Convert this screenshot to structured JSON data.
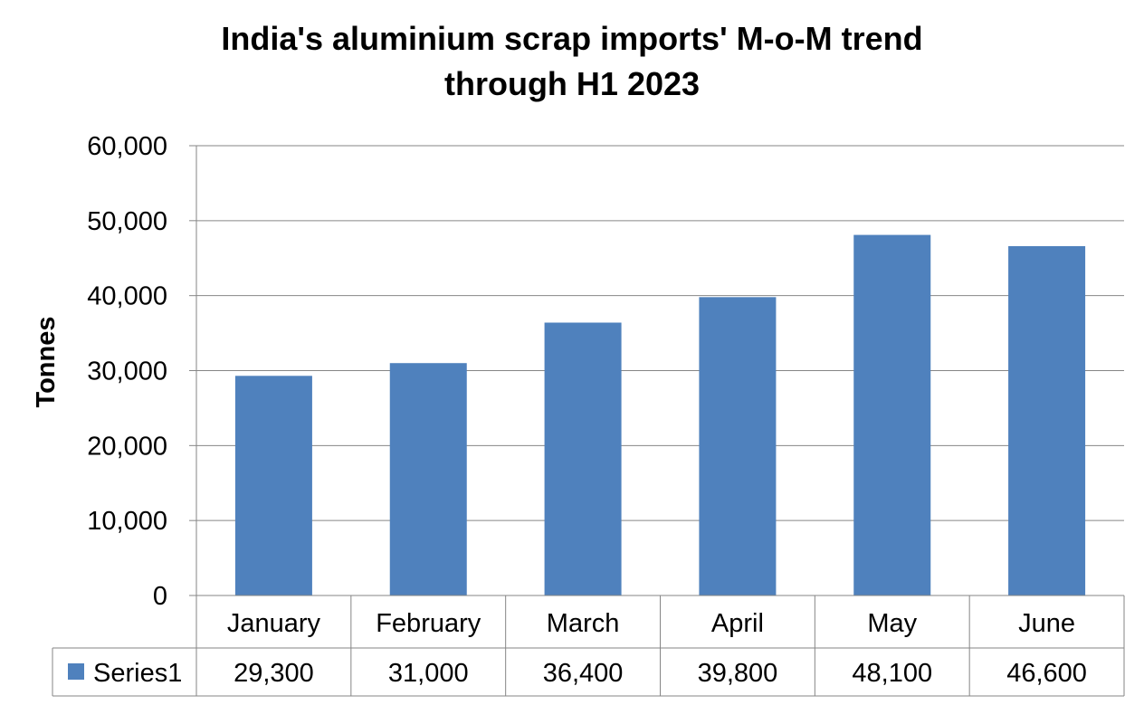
{
  "chart_data": {
    "type": "bar",
    "title_lines": [
      "India's aluminium scrap imports' M-o-M trend",
      "through H1 2023"
    ],
    "ylabel": "Tonnes",
    "xlabel": "",
    "categories": [
      "January",
      "February",
      "March",
      "April",
      "May",
      "June"
    ],
    "series": [
      {
        "name": "Series1",
        "color": "#4f81bd",
        "values": [
          29300,
          31000,
          36400,
          39800,
          48100,
          46600
        ]
      }
    ],
    "ylim": [
      0,
      60000
    ],
    "yticks": [
      0,
      10000,
      20000,
      30000,
      40000,
      50000,
      60000
    ],
    "ytick_labels": [
      "0",
      "10,000",
      "20,000",
      "30,000",
      "40,000",
      "50,000",
      "60,000"
    ],
    "data_table": {
      "legend_label": "Series1",
      "cells": [
        "29,300",
        "31,000",
        "36,400",
        "39,800",
        "48,100",
        "46,600"
      ]
    },
    "grid": true,
    "legend": "data-table"
  }
}
